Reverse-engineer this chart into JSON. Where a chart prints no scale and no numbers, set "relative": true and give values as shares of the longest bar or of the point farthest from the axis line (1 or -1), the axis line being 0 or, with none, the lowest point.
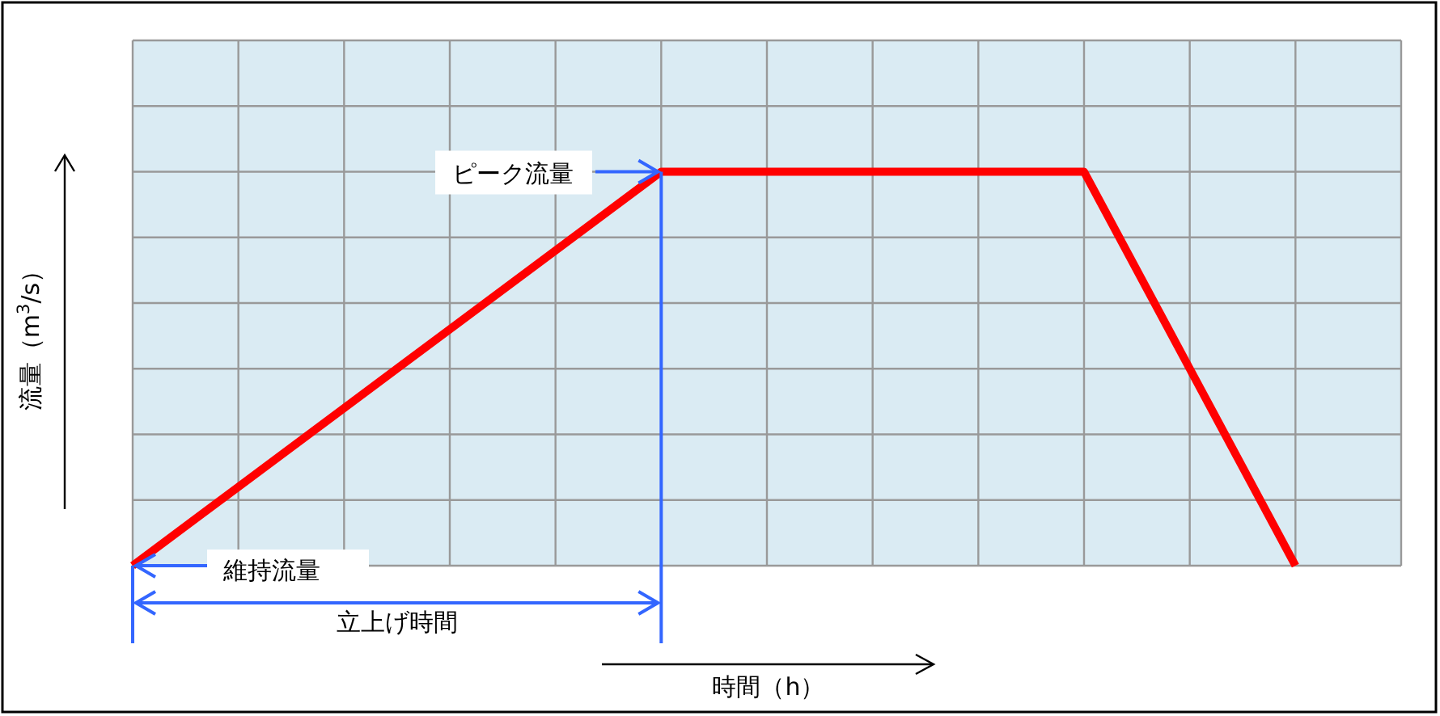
{
  "chart_data": {
    "type": "line",
    "relative": true,
    "categories": [
      null,
      null,
      null,
      null,
      null,
      null,
      null,
      null,
      null,
      null,
      null,
      null,
      null
    ],
    "series": [
      {
        "color": "#ff0000",
        "values": [
          0,
          0.2,
          0.4,
          0.6,
          0.8,
          1,
          1,
          1,
          1,
          1,
          0.5,
          0,
          null
        ]
      }
    ],
    "xlabel": "時間（h）",
    "ylabel": "流量（m$^{3}$/s）",
    "annotations": [
      "ピーク流量",
      "維持流量",
      "立上げ時間"
    ],
    "grid": true,
    "marker": "none",
    "line_style": "solid"
  }
}
